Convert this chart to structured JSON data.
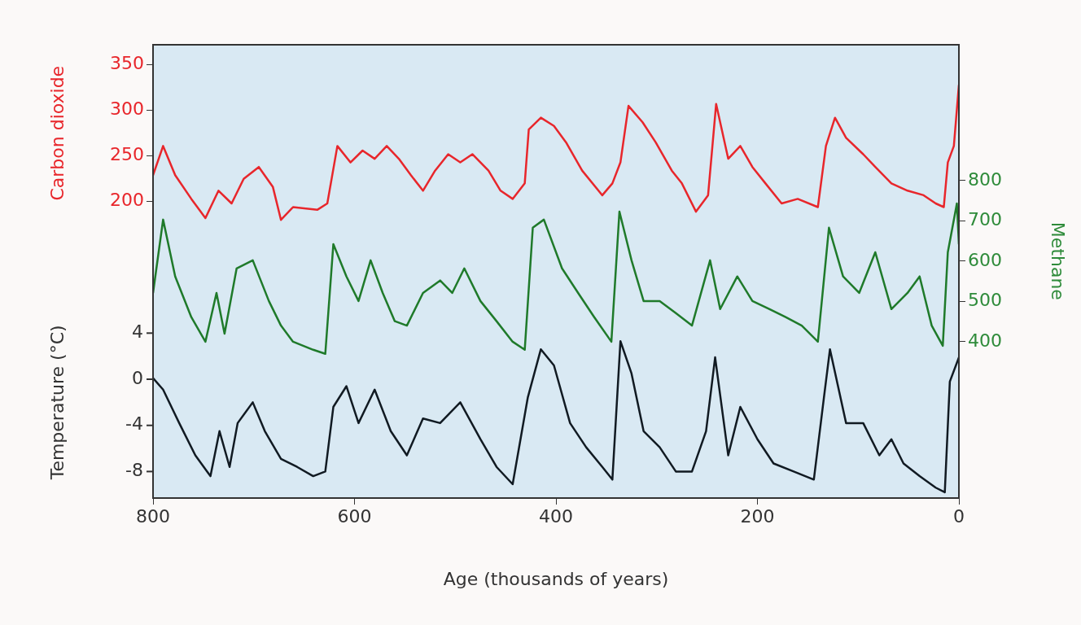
{
  "chart_data": {
    "type": "line",
    "xlabel": "Age (thousands of years)",
    "ylabel": "Carbon dioxide",
    "y2label": "Methane",
    "y3label": "Temperature (°C)",
    "xlim": [
      800,
      0
    ],
    "xticks": [
      800,
      600,
      400,
      200,
      0
    ],
    "ylim": [
      -125,
      372
    ],
    "yticks": [
      200,
      250,
      300,
      350
    ],
    "y2lim": [
      12,
      1137
    ],
    "y2ticks": [
      400,
      500,
      600,
      700,
      800
    ],
    "y3lim": [
      -10.3,
      29
    ],
    "y3ticks": [
      -8,
      -4,
      0,
      4
    ],
    "series": [
      {
        "axis": "y",
        "color": "#e8262b",
        "x": [
          800,
          790,
          778,
          762,
          748,
          735,
          722,
          710,
          695,
          681,
          673,
          661,
          637,
          627,
          617,
          604,
          592,
          580,
          568,
          556,
          544,
          532,
          520,
          507,
          495,
          483,
          467,
          455,
          443,
          431,
          427,
          415,
          402,
          390,
          374,
          354,
          344,
          336,
          328,
          314,
          301,
          285,
          275,
          261,
          249,
          241,
          229,
          217,
          205,
          192,
          176,
          160,
          140,
          132,
          123,
          112,
          95,
          83,
          67,
          51,
          35,
          23,
          15,
          11,
          5,
          0
        ],
        "values": [
          229,
          261,
          229,
          203,
          182,
          212,
          198,
          225,
          238,
          216,
          180,
          194,
          191,
          198,
          261,
          243,
          256,
          247,
          261,
          247,
          229,
          212,
          234,
          252,
          243,
          252,
          234,
          212,
          203,
          220,
          279,
          292,
          283,
          265,
          234,
          207,
          220,
          243,
          305,
          287,
          265,
          234,
          220,
          189,
          207,
          307,
          247,
          261,
          238,
          220,
          198,
          203,
          194,
          261,
          292,
          270,
          252,
          238,
          220,
          212,
          207,
          198,
          194,
          243,
          261,
          328
        ]
      },
      {
        "axis": "y2",
        "color": "#1f7a2a",
        "x": [
          800,
          790,
          778,
          762,
          748,
          737,
          729,
          717,
          701,
          685,
          673,
          661,
          641,
          629,
          621,
          608,
          596,
          584,
          572,
          560,
          548,
          532,
          515,
          503,
          491,
          475,
          459,
          443,
          431,
          423,
          412,
          394,
          378,
          362,
          345,
          337,
          325,
          313,
          297,
          281,
          265,
          247,
          237,
          220,
          205,
          188,
          172,
          156,
          140,
          129,
          115,
          99,
          83,
          67,
          51,
          39,
          27,
          16,
          11,
          2,
          0
        ],
        "values": [
          521,
          703,
          562,
          461,
          400,
          521,
          420,
          582,
          602,
          501,
          440,
          400,
          380,
          370,
          642,
          562,
          501,
          602,
          521,
          451,
          440,
          521,
          552,
          521,
          582,
          501,
          451,
          400,
          380,
          683,
          703,
          582,
          521,
          461,
          400,
          723,
          602,
          501,
          501,
          471,
          440,
          602,
          481,
          562,
          501,
          481,
          461,
          440,
          400,
          683,
          562,
          521,
          622,
          481,
          521,
          562,
          440,
          390,
          622,
          743,
          642
        ]
      },
      {
        "axis": "y3",
        "color": "#111a22",
        "x": [
          800,
          790,
          774,
          758,
          743,
          734,
          724,
          716,
          701,
          689,
          673,
          657,
          641,
          629,
          621,
          608,
          596,
          580,
          564,
          548,
          532,
          515,
          495,
          475,
          459,
          443,
          428,
          415,
          402,
          386,
          370,
          354,
          344,
          336,
          325,
          313,
          297,
          281,
          265,
          251,
          242,
          229,
          217,
          200,
          184,
          164,
          144,
          134,
          128,
          112,
          95,
          79,
          67,
          55,
          39,
          23,
          14,
          9,
          0
        ],
        "values": [
          0.1,
          -0.9,
          -3.8,
          -6.6,
          -8.4,
          -4.5,
          -7.6,
          -3.8,
          -2.0,
          -4.5,
          -6.9,
          -7.6,
          -8.4,
          -8.0,
          -2.4,
          -0.6,
          -3.8,
          -0.9,
          -4.5,
          -6.6,
          -3.4,
          -3.8,
          -2.0,
          -5.2,
          -7.6,
          -9.1,
          -1.6,
          2.6,
          1.2,
          -3.8,
          -5.9,
          -7.6,
          -8.7,
          3.3,
          0.5,
          -4.5,
          -5.9,
          -8.0,
          -8.0,
          -4.5,
          1.9,
          -6.6,
          -2.4,
          -5.2,
          -7.3,
          -8.0,
          -8.7,
          -1.6,
          2.6,
          -3.8,
          -3.8,
          -6.6,
          -5.2,
          -7.3,
          -8.4,
          -9.4,
          -9.8,
          -0.2,
          1.9
        ]
      }
    ]
  }
}
